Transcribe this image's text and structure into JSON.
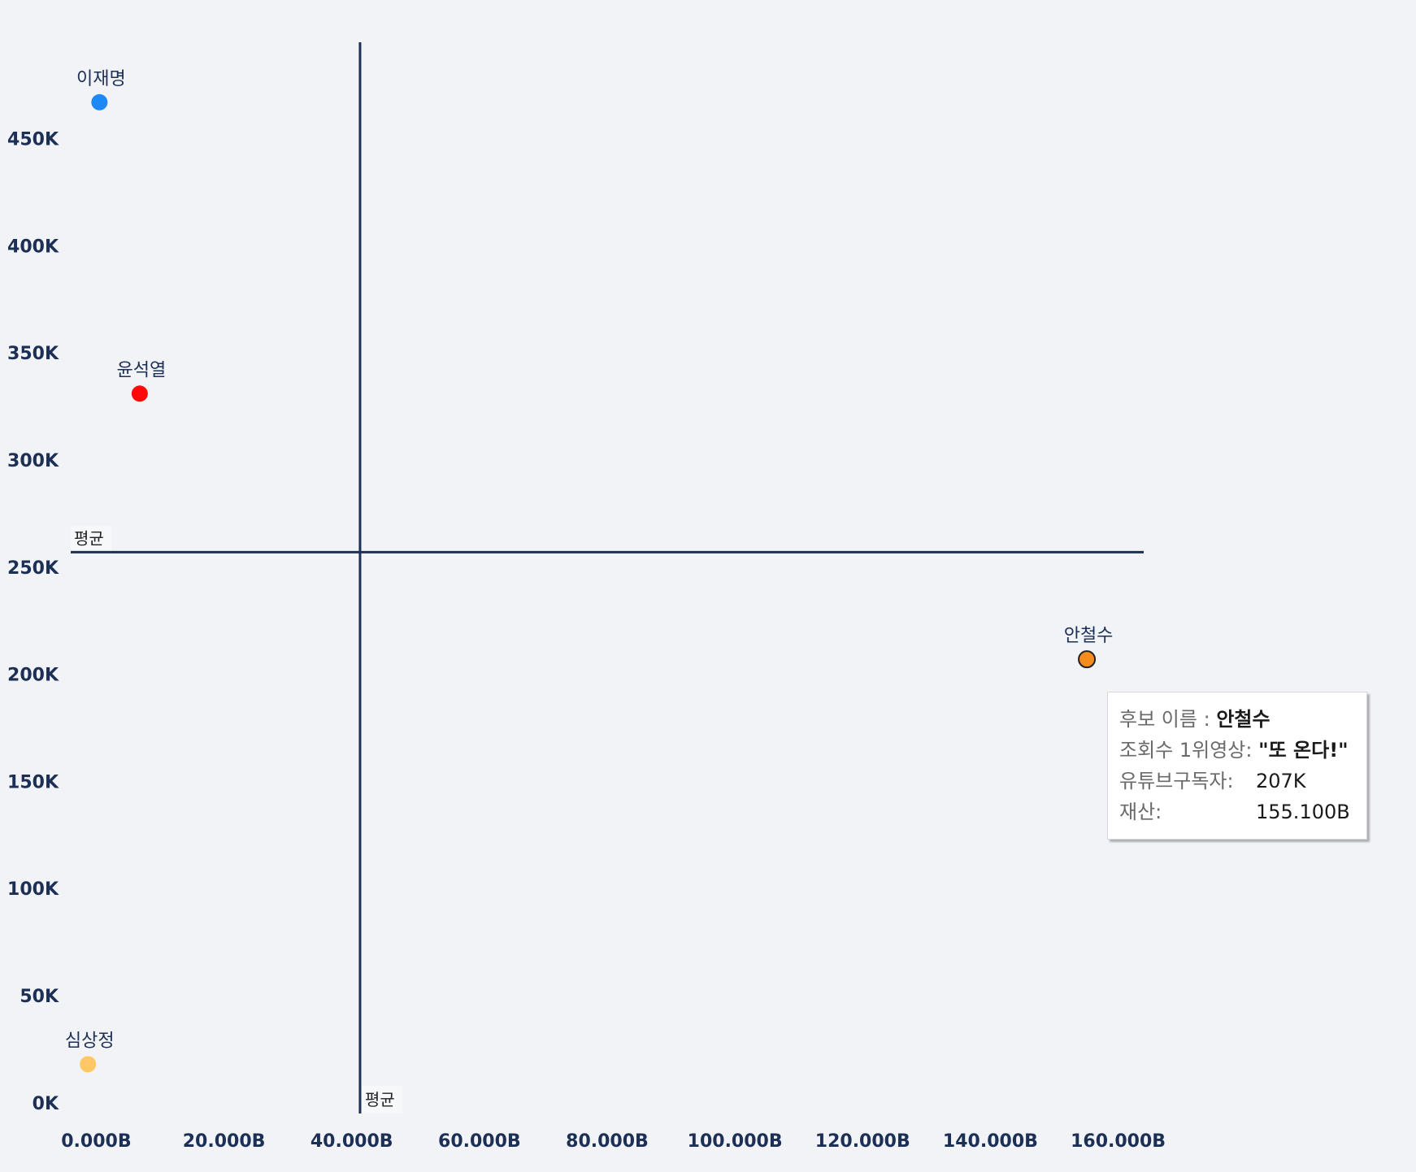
{
  "chart_data": {
    "type": "scatter",
    "title": "",
    "xlabel": "",
    "ylabel": "",
    "xlim": [
      -4,
      164
    ],
    "ylim": [
      -5000,
      495000
    ],
    "x_ticks": [
      "0.000B",
      "20.000B",
      "40.000B",
      "60.000B",
      "80.000B",
      "100.000B",
      "120.000B",
      "140.000B",
      "160.000B"
    ],
    "y_ticks": [
      "0K",
      "50K",
      "100K",
      "150K",
      "200K",
      "250K",
      "300K",
      "350K",
      "400K",
      "450K"
    ],
    "points": [
      {
        "name": "이재명",
        "x": 0.5,
        "y": 467000,
        "color": "#1e88f5"
      },
      {
        "name": "윤석열",
        "x": 6.8,
        "y": 331000,
        "color": "#ff0a0a"
      },
      {
        "name": "안철수",
        "x": 155.1,
        "y": 207000,
        "color": "#f58c1e"
      },
      {
        "name": "심상정",
        "x": -1.3,
        "y": 18000,
        "color": "#ffc864"
      }
    ],
    "reference_lines": {
      "x_avg": {
        "value": 41.3,
        "label": "평균"
      },
      "y_avg": {
        "value": 257000,
        "label": "평균"
      }
    },
    "grid": false,
    "legend": "none"
  },
  "tooltip": {
    "name_label": "후보 이름 :",
    "name_value": "안철수",
    "video_label": "조회수 1위영상:",
    "video_value": "\"또 온다!\"",
    "subs_label": "유튜브구독자:",
    "subs_value": "207K",
    "assets_label": "재산:",
    "assets_value": "155.100B"
  }
}
